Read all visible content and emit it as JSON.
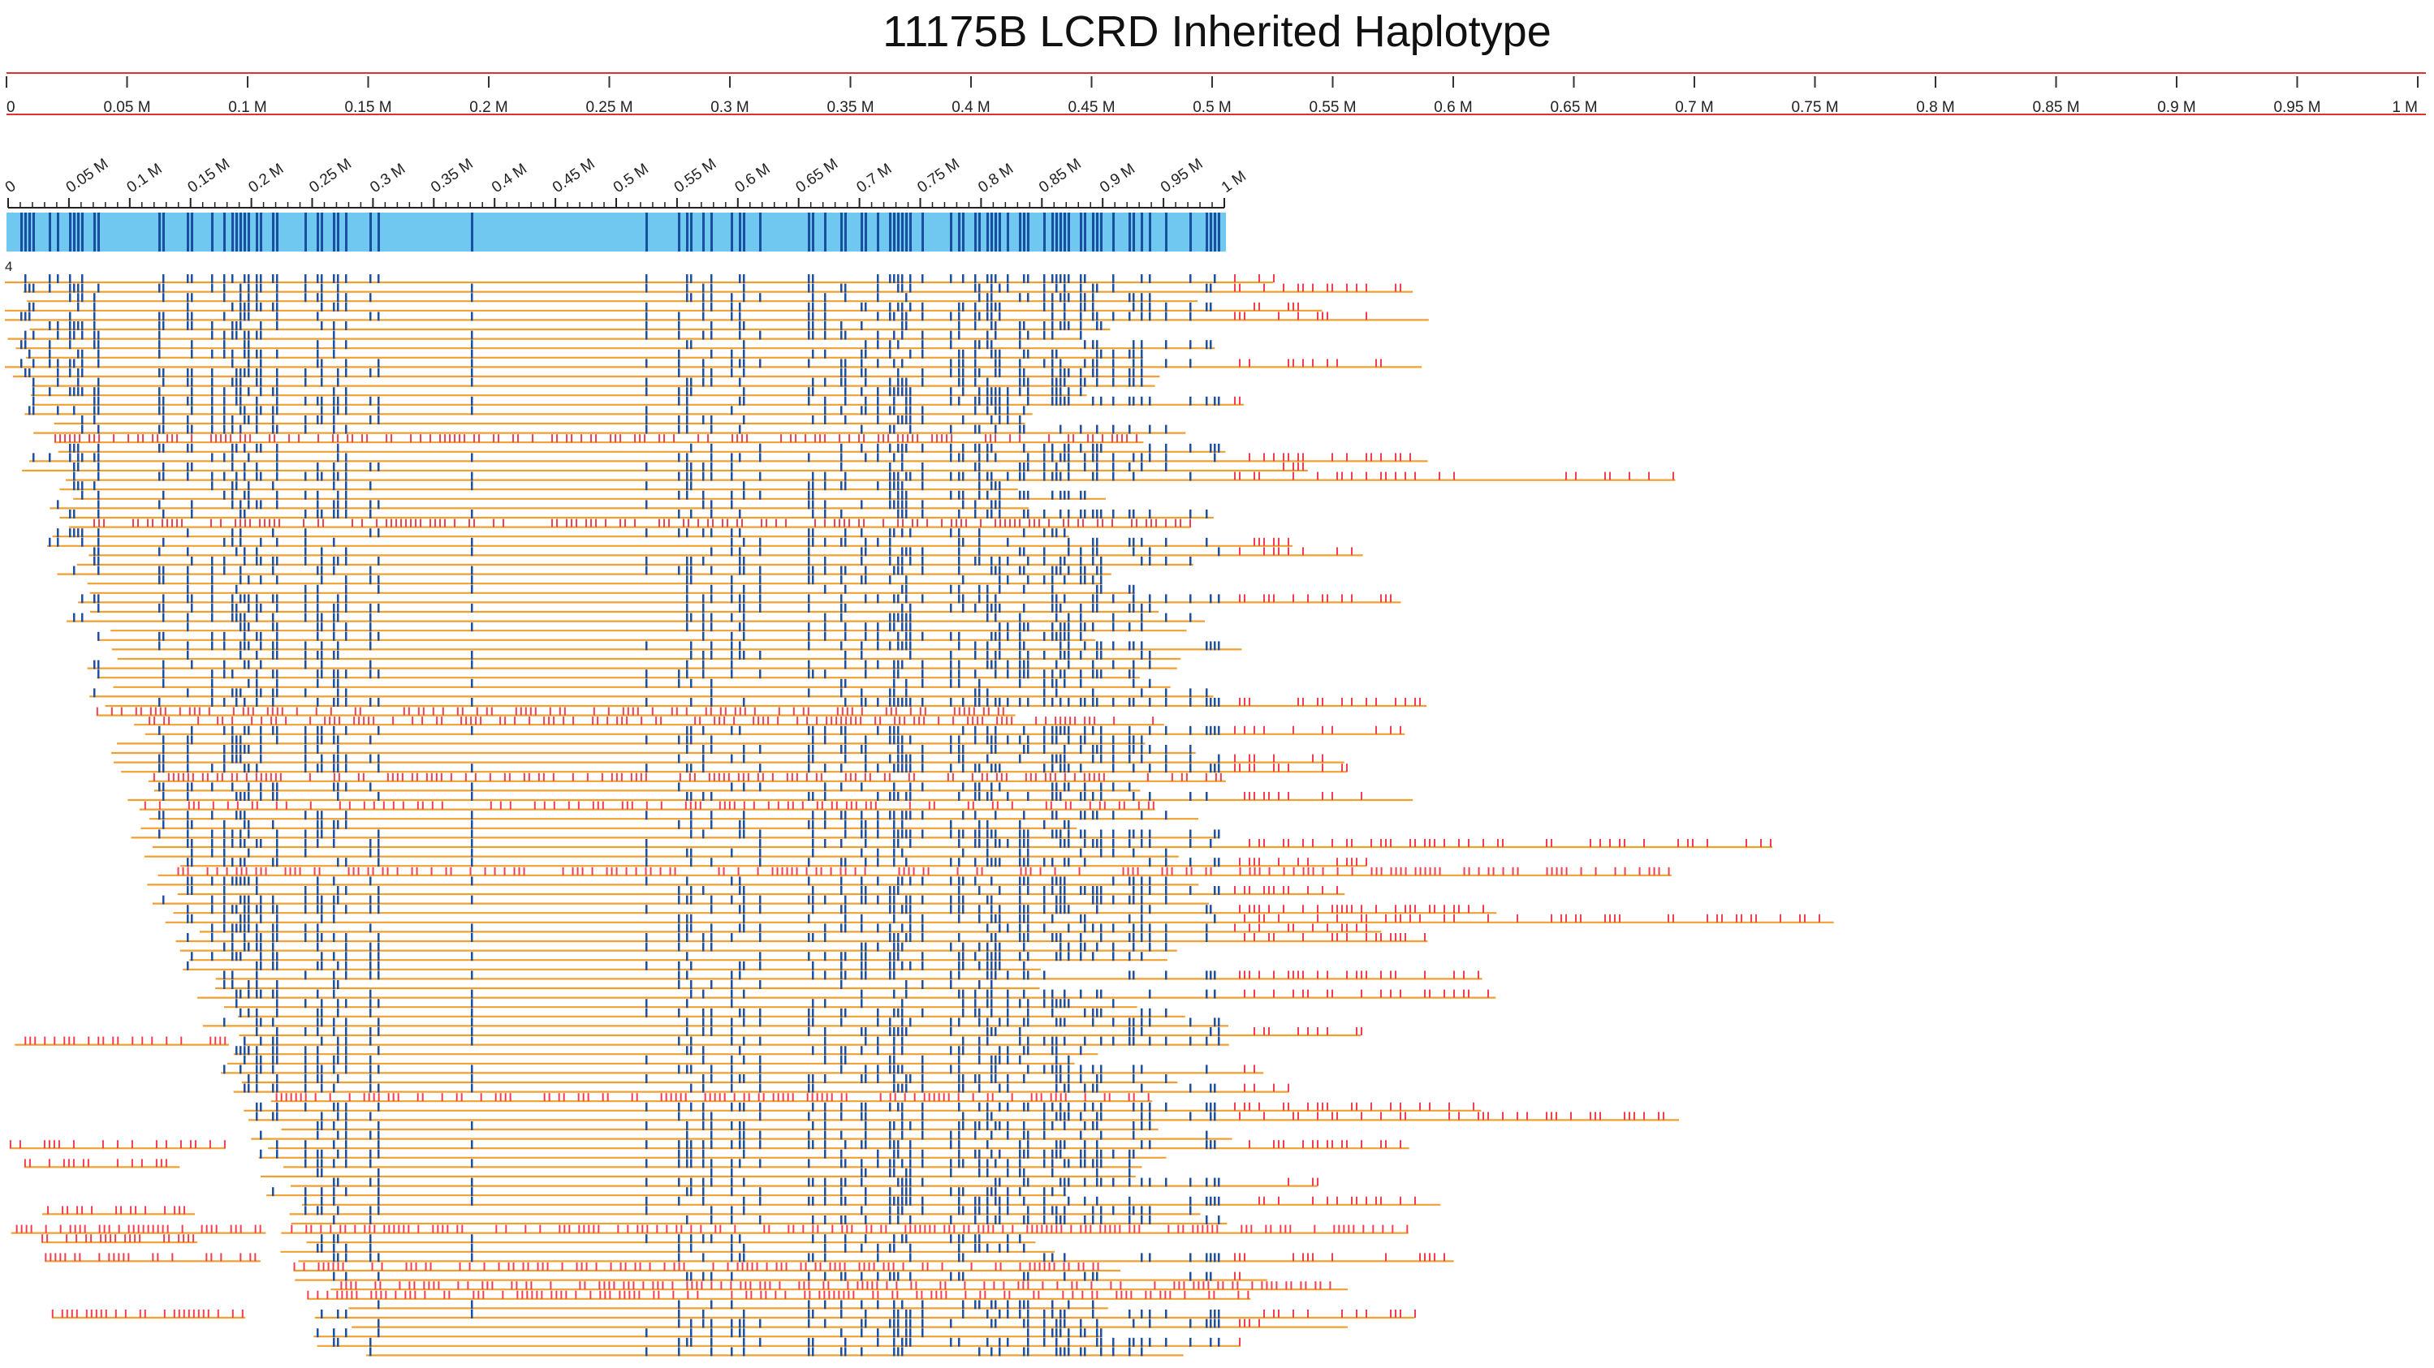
{
  "title": "11175B LCRD Inherited Haplotype",
  "colors": {
    "ruler_line": "#e03030",
    "read_line": "#f0a030",
    "variant_blue": "#2050a0",
    "variant_red": "#f04050",
    "reference_bar": "#70c8f0",
    "reference_mark": "#1a4fa0",
    "text": "#222222"
  },
  "top_ruler": {
    "ticks": [
      "0",
      "0.05 M",
      "0.1 M",
      "0.15 M",
      "0.2 M",
      "0.25 M",
      "0.3 M",
      "0.35 M",
      "0.4 M",
      "0.45 M",
      "0.5 M",
      "0.55 M",
      "0.6 M",
      "0.65 M",
      "0.7 M",
      "0.75 M",
      "0.8 M",
      "0.85 M",
      "0.9 M",
      "0.95 M",
      "1 M"
    ]
  },
  "track_ruler": {
    "ticks": [
      "0",
      "0.05 M",
      "0.1 M",
      "0.15 M",
      "0.2 M",
      "0.25 M",
      "0.3 M",
      "0.35 M",
      "0.4 M",
      "0.45 M",
      "0.5 M",
      "0.55 M",
      "0.6 M",
      "0.65 M",
      "0.7 M",
      "0.75 M",
      "0.8 M",
      "0.85 M",
      "0.9 M",
      "0.95 M",
      "1 M"
    ]
  },
  "track_label": "4"
}
